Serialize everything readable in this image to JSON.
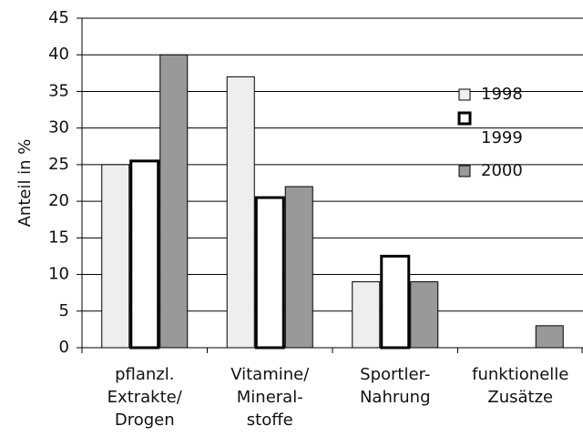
{
  "chart_data": {
    "type": "bar",
    "y_label": "Anteil in %",
    "categories": [
      [
        "pflanzl.",
        "Extrakte/",
        "Drogen"
      ],
      [
        "Vitamine/",
        "Mineral-",
        "stoffe"
      ],
      [
        "Sportler-",
        "Nahrung"
      ],
      [
        "funktionelle",
        "Zusätze"
      ]
    ],
    "series": [
      {
        "name": "1998",
        "color": "#eeeeee",
        "values": [
          25,
          37,
          9,
          0
        ]
      },
      {
        "name": "1999",
        "color": "#ffffff",
        "values": [
          25.5,
          20.5,
          12.5,
          0
        ]
      },
      {
        "name": "2000",
        "color": "#999999",
        "values": [
          40,
          22,
          9,
          3
        ]
      }
    ],
    "ylim": [
      0,
      45
    ],
    "yticks": [
      0,
      5,
      10,
      15,
      20,
      25,
      30,
      35,
      40,
      45
    ],
    "grid": true
  }
}
